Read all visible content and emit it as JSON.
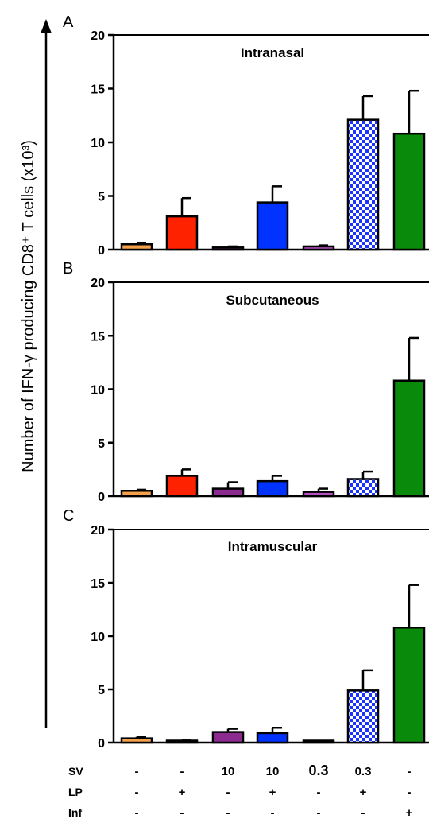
{
  "figure": {
    "ylabel": "Number of IFN-γ producing CD8⁺ T cells (x10³)"
  },
  "chart_data": [
    {
      "type": "bar",
      "panel": "A",
      "title": "Intranasal",
      "ylim": [
        0,
        20
      ],
      "yticks": [
        "0",
        "5",
        "10",
        "15",
        "20"
      ],
      "values": [
        0.5,
        3.1,
        0.2,
        4.4,
        0.3,
        12.1,
        10.8
      ],
      "errors": [
        0.15,
        1.7,
        0.1,
        1.5,
        0.1,
        2.2,
        4.0
      ]
    },
    {
      "type": "bar",
      "panel": "B",
      "title": "Subcutaneous",
      "ylim": [
        0,
        20
      ],
      "yticks": [
        "0",
        "5",
        "10",
        "15",
        "20"
      ],
      "values": [
        0.5,
        1.9,
        0.7,
        1.4,
        0.4,
        1.6,
        10.8
      ],
      "errors": [
        0.1,
        0.6,
        0.6,
        0.5,
        0.3,
        0.7,
        4.0
      ]
    },
    {
      "type": "bar",
      "panel": "C",
      "title": "Intramuscular",
      "ylim": [
        0,
        20
      ],
      "yticks": [
        "0",
        "5",
        "10",
        "15",
        "20"
      ],
      "values": [
        0.4,
        0.15,
        1.0,
        0.9,
        0.05,
        4.9,
        10.8
      ],
      "errors": [
        0.15,
        0.05,
        0.3,
        0.5,
        0.02,
        1.9,
        4.0
      ]
    }
  ],
  "groups": {
    "colors": [
      "#F5A04A",
      "#FF2200",
      "#8B2A8F",
      "#0033FF",
      "#B34FBF",
      "#1A33FF",
      "#0A8A0A"
    ],
    "patterns": [
      "solid",
      "solid",
      "solid",
      "solid",
      "solid",
      "checker",
      "solid"
    ]
  },
  "conditions": {
    "rows": [
      {
        "label": "SV",
        "values": [
          "-",
          "-",
          "10",
          "10",
          "0.3",
          "0.3",
          "-"
        ]
      },
      {
        "label": "LP",
        "values": [
          "-",
          "+",
          "-",
          "+",
          "-",
          "+",
          "-"
        ]
      },
      {
        "label": "Inf",
        "values": [
          "-",
          "-",
          "-",
          "-",
          "-",
          "-",
          "+"
        ]
      }
    ]
  }
}
